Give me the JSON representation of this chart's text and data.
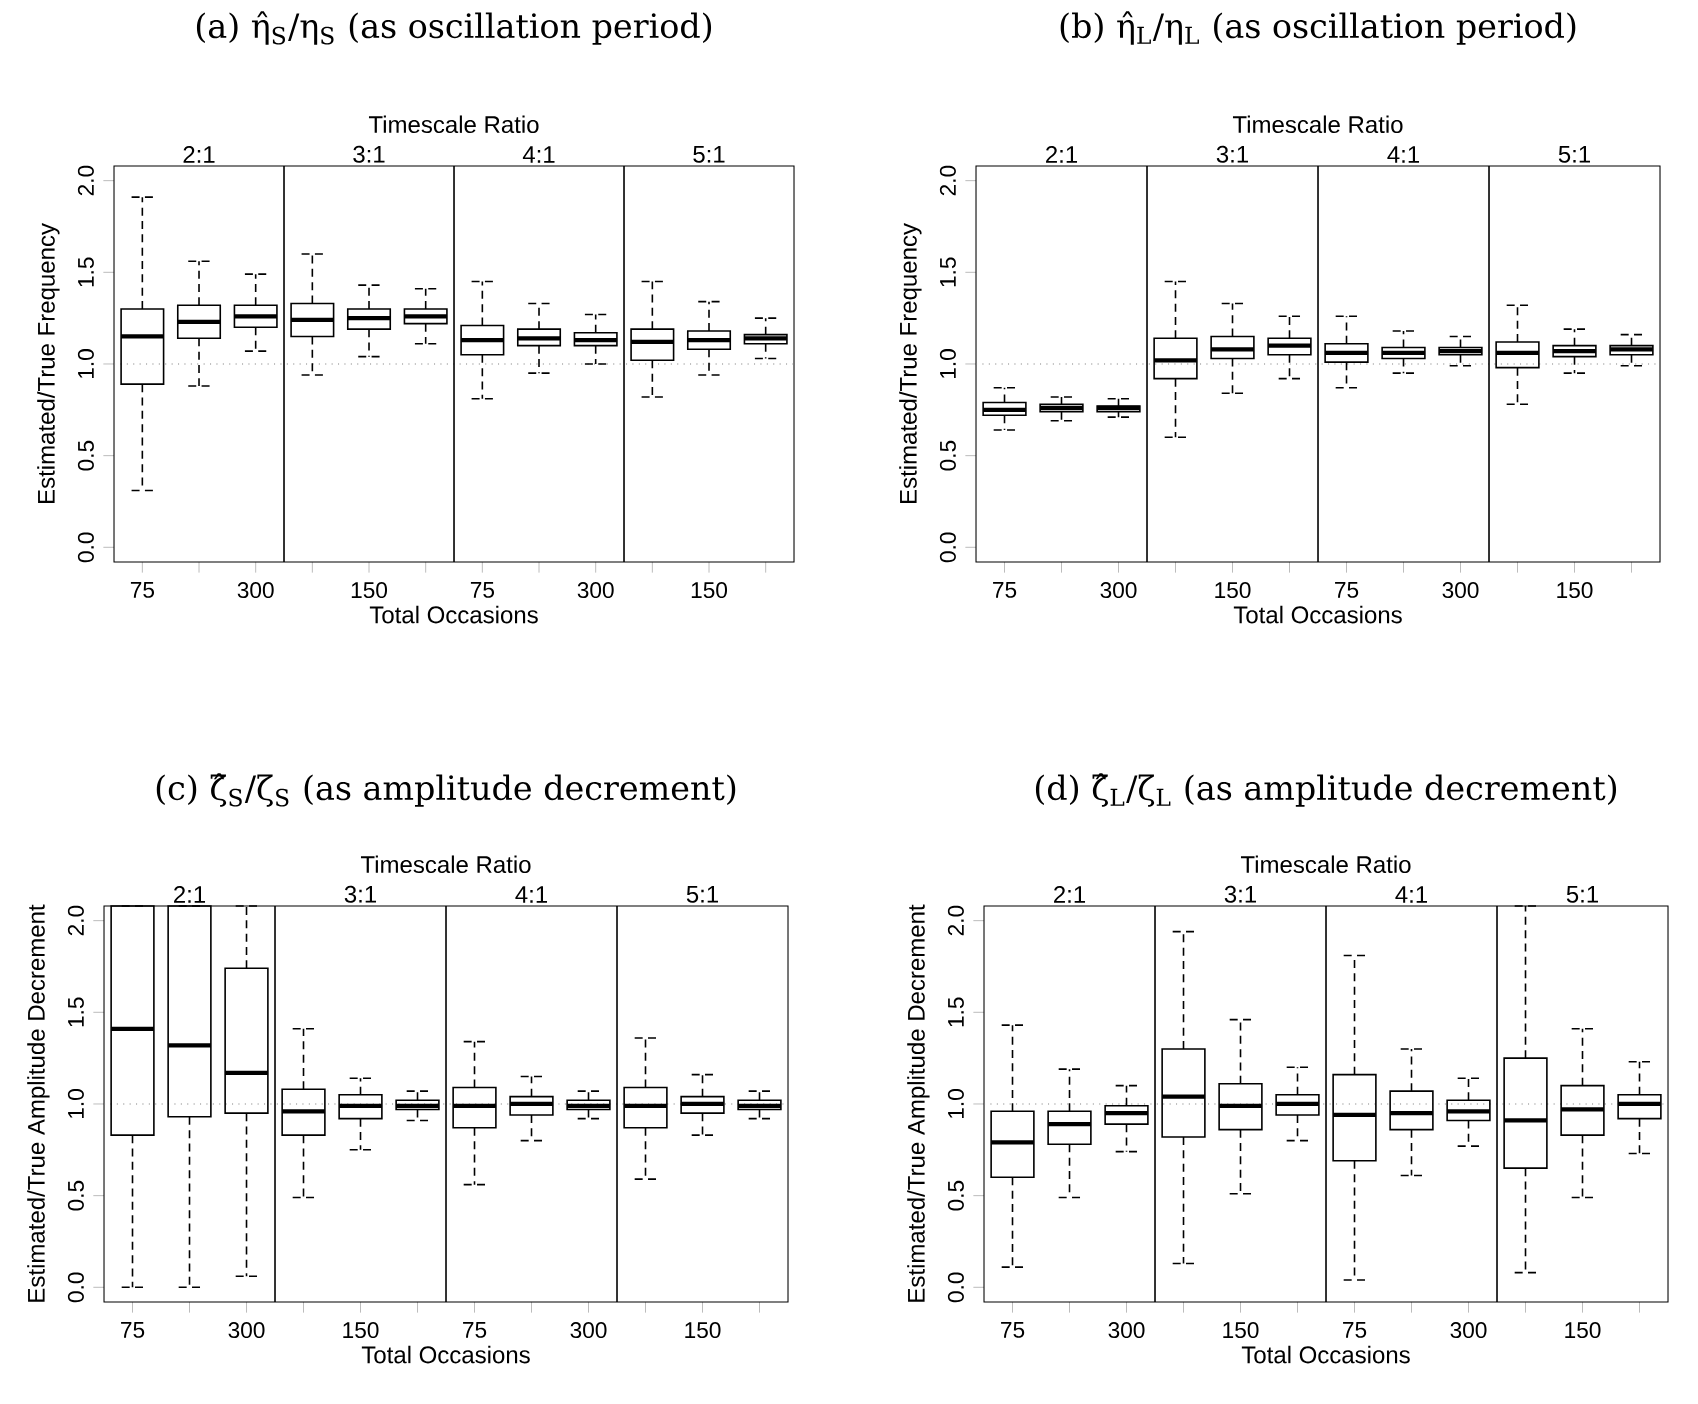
{
  "chart_data": [
    {
      "type": "box",
      "title": "(a) η̂$_{S}$/η$_{S}$ (as oscillation period)",
      "xlabel": "Total Occasions",
      "ylabel": "Estimated/True Frequency",
      "x2label": "Timescale Ratio",
      "categories": [
        "75",
        null,
        "300",
        null,
        "150",
        null,
        "75",
        null,
        "300",
        null,
        "150",
        null
      ],
      "boxes": [
        {
          "low": 0.31,
          "q1": 0.89,
          "median": 1.15,
          "q3": 1.3,
          "high": 1.91
        },
        {
          "low": 0.88,
          "q1": 1.14,
          "median": 1.23,
          "q3": 1.32,
          "high": 1.56
        },
        {
          "low": 1.07,
          "q1": 1.2,
          "median": 1.26,
          "q3": 1.32,
          "high": 1.49
        },
        {
          "low": 0.94,
          "q1": 1.15,
          "median": 1.24,
          "q3": 1.33,
          "high": 1.6
        },
        {
          "low": 1.04,
          "q1": 1.19,
          "median": 1.25,
          "q3": 1.3,
          "high": 1.43
        },
        {
          "low": 1.11,
          "q1": 1.22,
          "median": 1.26,
          "q3": 1.3,
          "high": 1.41
        },
        {
          "low": 0.81,
          "q1": 1.05,
          "median": 1.13,
          "q3": 1.21,
          "high": 1.45
        },
        {
          "low": 0.95,
          "q1": 1.1,
          "median": 1.14,
          "q3": 1.19,
          "high": 1.33
        },
        {
          "low": 1.0,
          "q1": 1.1,
          "median": 1.13,
          "q3": 1.17,
          "high": 1.27
        },
        {
          "low": 0.82,
          "q1": 1.02,
          "median": 1.12,
          "q3": 1.19,
          "high": 1.45
        },
        {
          "low": 0.94,
          "q1": 1.08,
          "median": 1.13,
          "q3": 1.18,
          "high": 1.34
        },
        {
          "low": 1.03,
          "q1": 1.11,
          "median": 1.14,
          "q3": 1.16,
          "high": 1.25
        }
      ],
      "ylim": [
        -0.08,
        2.08
      ],
      "yticks": [
        {
          "value": 0,
          "label": "0.0"
        },
        {
          "value": 0.5,
          "label": "0.5"
        },
        {
          "value": 1,
          "label": "1.0"
        },
        {
          "value": 1.5,
          "label": "1.5"
        },
        {
          "value": 2,
          "label": "2.0"
        }
      ],
      "annotations": [
        "2:1",
        "3:1",
        "4:1",
        "5:1"
      ],
      "ref_lines": [
        {
          "axis": "y",
          "value": 1,
          "line_style": "dotted",
          "color": "#808080"
        }
      ]
    },
    {
      "type": "box",
      "title": "(b) η̂$_{L}$/η$_{L}$ (as oscillation period)",
      "xlabel": "Total Occasions",
      "ylabel": "Estimated/True Frequency",
      "x2label": "Timescale Ratio",
      "categories": [
        "75",
        null,
        "300",
        null,
        "150",
        null,
        "75",
        null,
        "300",
        null,
        "150",
        null
      ],
      "boxes": [
        {
          "low": 0.64,
          "q1": 0.72,
          "median": 0.75,
          "q3": 0.79,
          "high": 0.87
        },
        {
          "low": 0.69,
          "q1": 0.74,
          "median": 0.76,
          "q3": 0.78,
          "high": 0.82
        },
        {
          "low": 0.71,
          "q1": 0.74,
          "median": 0.76,
          "q3": 0.77,
          "high": 0.81
        },
        {
          "low": 0.6,
          "q1": 0.92,
          "median": 1.02,
          "q3": 1.14,
          "high": 1.45
        },
        {
          "low": 0.84,
          "q1": 1.03,
          "median": 1.08,
          "q3": 1.15,
          "high": 1.33
        },
        {
          "low": 0.92,
          "q1": 1.05,
          "median": 1.1,
          "q3": 1.14,
          "high": 1.26
        },
        {
          "low": 0.87,
          "q1": 1.01,
          "median": 1.06,
          "q3": 1.11,
          "high": 1.26
        },
        {
          "low": 0.95,
          "q1": 1.03,
          "median": 1.06,
          "q3": 1.09,
          "high": 1.18
        },
        {
          "low": 0.99,
          "q1": 1.05,
          "median": 1.07,
          "q3": 1.09,
          "high": 1.15
        },
        {
          "low": 0.78,
          "q1": 0.98,
          "median": 1.06,
          "q3": 1.12,
          "high": 1.32
        },
        {
          "low": 0.95,
          "q1": 1.04,
          "median": 1.07,
          "q3": 1.1,
          "high": 1.19
        },
        {
          "low": 0.99,
          "q1": 1.05,
          "median": 1.08,
          "q3": 1.1,
          "high": 1.16
        }
      ],
      "ylim": [
        -0.08,
        2.08
      ],
      "yticks": [
        {
          "value": 0,
          "label": "0.0"
        },
        {
          "value": 0.5,
          "label": "0.5"
        },
        {
          "value": 1,
          "label": "1.0"
        },
        {
          "value": 1.5,
          "label": "1.5"
        },
        {
          "value": 2,
          "label": "2.0"
        }
      ],
      "annotations": [
        "2:1",
        "3:1",
        "4:1",
        "5:1"
      ],
      "ref_lines": [
        {
          "axis": "y",
          "value": 1,
          "line_style": "dotted",
          "color": "#808080"
        }
      ]
    },
    {
      "type": "box",
      "title": "(c) ζ̂$_{S}$/ζ$_{S}$ (as amplitude decrement)",
      "xlabel": "Total Occasions",
      "ylabel": "Estimated/True Amplitude Decrement",
      "x2label": "Timescale Ratio",
      "categories": [
        "75",
        null,
        "300",
        null,
        "150",
        null,
        "75",
        null,
        "300",
        null,
        "150",
        null
      ],
      "boxes": [
        {
          "low": 0.0,
          "q1": 0.83,
          "median": 1.41,
          "q3": 2.08,
          "high": 2.08
        },
        {
          "low": 0.0,
          "q1": 0.93,
          "median": 1.32,
          "q3": 2.08,
          "high": 2.08
        },
        {
          "low": 0.06,
          "q1": 0.95,
          "median": 1.17,
          "q3": 1.74,
          "high": 2.08
        },
        {
          "low": 0.49,
          "q1": 0.83,
          "median": 0.96,
          "q3": 1.08,
          "high": 1.41
        },
        {
          "low": 0.75,
          "q1": 0.92,
          "median": 0.99,
          "q3": 1.05,
          "high": 1.14
        },
        {
          "low": 0.91,
          "q1": 0.97,
          "median": 0.99,
          "q3": 1.02,
          "high": 1.07
        },
        {
          "low": 0.56,
          "q1": 0.87,
          "median": 0.99,
          "q3": 1.09,
          "high": 1.34
        },
        {
          "low": 0.8,
          "q1": 0.94,
          "median": 1.0,
          "q3": 1.04,
          "high": 1.15
        },
        {
          "low": 0.92,
          "q1": 0.97,
          "median": 0.99,
          "q3": 1.02,
          "high": 1.07
        },
        {
          "low": 0.59,
          "q1": 0.87,
          "median": 0.99,
          "q3": 1.09,
          "high": 1.36
        },
        {
          "low": 0.83,
          "q1": 0.95,
          "median": 1.0,
          "q3": 1.04,
          "high": 1.16
        },
        {
          "low": 0.92,
          "q1": 0.97,
          "median": 0.99,
          "q3": 1.02,
          "high": 1.07
        }
      ],
      "ylim": [
        -0.08,
        2.08
      ],
      "yticks": [
        {
          "value": 0,
          "label": "0.0"
        },
        {
          "value": 0.5,
          "label": "0.5"
        },
        {
          "value": 1,
          "label": "1.0"
        },
        {
          "value": 1.5,
          "label": "1.5"
        },
        {
          "value": 2,
          "label": "2.0"
        }
      ],
      "annotations": [
        "2:1",
        "3:1",
        "4:1",
        "5:1"
      ],
      "ref_lines": [
        {
          "axis": "y",
          "value": 1,
          "line_style": "dotted",
          "color": "#808080"
        }
      ]
    },
    {
      "type": "box",
      "title": "(d) ζ̂$_{L}$/ζ$_{L}$ (as amplitude decrement)",
      "xlabel": "Total Occasions",
      "ylabel": "Estimated/True Amplitude Decrement",
      "x2label": "Timescale Ratio",
      "categories": [
        "75",
        null,
        "300",
        null,
        "150",
        null,
        "75",
        null,
        "300",
        null,
        "150",
        null
      ],
      "boxes": [
        {
          "low": 0.11,
          "q1": 0.6,
          "median": 0.79,
          "q3": 0.96,
          "high": 1.43
        },
        {
          "low": 0.49,
          "q1": 0.78,
          "median": 0.89,
          "q3": 0.96,
          "high": 1.19
        },
        {
          "low": 0.74,
          "q1": 0.89,
          "median": 0.95,
          "q3": 0.99,
          "high": 1.1
        },
        {
          "low": 0.13,
          "q1": 0.82,
          "median": 1.04,
          "q3": 1.3,
          "high": 1.94
        },
        {
          "low": 0.51,
          "q1": 0.86,
          "median": 0.99,
          "q3": 1.11,
          "high": 1.46
        },
        {
          "low": 0.8,
          "q1": 0.94,
          "median": 1.0,
          "q3": 1.05,
          "high": 1.2
        },
        {
          "low": 0.04,
          "q1": 0.69,
          "median": 0.94,
          "q3": 1.16,
          "high": 1.81
        },
        {
          "low": 0.61,
          "q1": 0.86,
          "median": 0.95,
          "q3": 1.07,
          "high": 1.3
        },
        {
          "low": 0.77,
          "q1": 0.91,
          "median": 0.96,
          "q3": 1.02,
          "high": 1.14
        },
        {
          "low": 0.08,
          "q1": 0.65,
          "median": 0.91,
          "q3": 1.25,
          "high": 2.08
        },
        {
          "low": 0.49,
          "q1": 0.83,
          "median": 0.97,
          "q3": 1.1,
          "high": 1.41
        },
        {
          "low": 0.73,
          "q1": 0.92,
          "median": 1.0,
          "q3": 1.05,
          "high": 1.23
        }
      ],
      "ylim": [
        -0.08,
        2.08
      ],
      "yticks": [
        {
          "value": 0,
          "label": "0.0"
        },
        {
          "value": 0.5,
          "label": "0.5"
        },
        {
          "value": 1,
          "label": "1.0"
        },
        {
          "value": 1.5,
          "label": "1.5"
        },
        {
          "value": 2,
          "label": "2.0"
        }
      ],
      "annotations": [
        "2:1",
        "3:1",
        "4:1",
        "5:1"
      ],
      "ref_lines": [
        {
          "axis": "y",
          "value": 1,
          "line_style": "dotted",
          "color": "#808080"
        }
      ]
    }
  ]
}
